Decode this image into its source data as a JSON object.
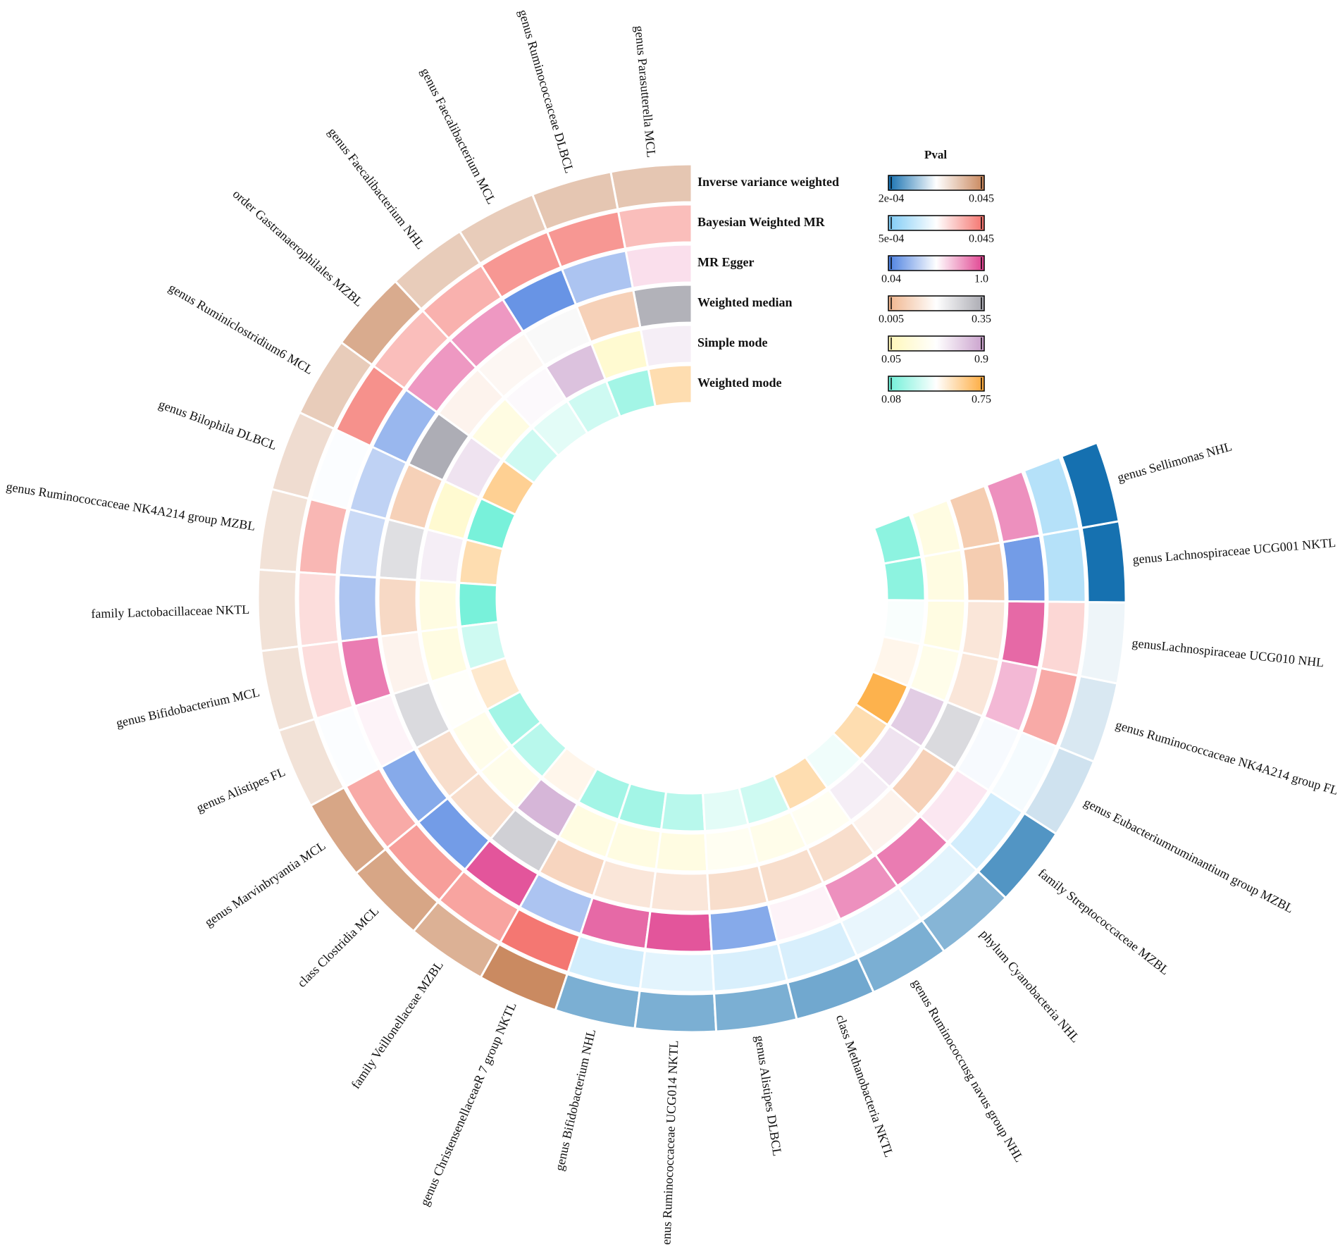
{
  "chart_data": {
    "type": "circular_heatmap",
    "legend_title": "Pval",
    "categories": [
      "genus Parasutterella MCL",
      "genus Ruminococcaceae DLBCL",
      "genus Faecalibacterium MCL",
      "genus Faecalibacterium NHL",
      "order Gastranaerophilales MZBL",
      "genus Ruminiclostridium6 MCL",
      "genus Bilophila DLBCL",
      "genus Ruminococcaceae NK4A214 group MZBL",
      "family Lactobacillaceae NKTL",
      "genus Bifidobacterium MCL",
      "genus Alistipes FL",
      "genus Marvinbryantia MCL",
      "class Clostridia MCL",
      "family Veillonellaceae MZBL",
      "genus ChristensenellaceaeR 7 group NKTL",
      "genus Bifidobacterium NHL",
      "genus Ruminococcaceae UCG014 NKTL",
      "genus Alistipes DLBCL",
      "class Methanobacteria NKTL",
      "genus Ruminococcusg navus group NHL",
      "phylum Cyanobacteria NHL",
      "family Streptococcaceae MZBL",
      "genus Eubacteriumruminantium group MZBL",
      "genus Ruminococcaceae NK4A214 group FL",
      "genusLachnospiraceae UCG010 NHL",
      "genus Lachnospiraceae UCG001 NKTL",
      "genus Sellimonas NHL"
    ],
    "series": [
      {
        "name": "Inverse variance weighted",
        "colors": [
          "#1570b0",
          "#ffffff",
          "#c8855a"
        ],
        "clim": [
          0.0002,
          0.045
        ],
        "cticks": [
          {
            "value": 0.0002,
            "label": "2e-04"
          },
          0.045
        ],
        "values": [
          0.033,
          0.033,
          0.032,
          0.032,
          0.038,
          0.032,
          0.029,
          0.028,
          0.028,
          0.028,
          0.028,
          0.039,
          0.039,
          0.037,
          0.044,
          0.01,
          0.01,
          0.01,
          0.009,
          0.01,
          0.011,
          0.006,
          0.018,
          0.019,
          0.021,
          0.0003,
          0.0002
        ]
      },
      {
        "name": "Bayesian Weighted MR",
        "colors": [
          "#7ecbf5",
          "#ffffff",
          "#f4716b"
        ],
        "clim": [
          0.0005,
          0.045
        ],
        "cticks": [
          {
            "value": 0.0005,
            "label": "5e-04"
          },
          0.045
        ],
        "values": [
          0.033,
          0.039,
          0.039,
          0.035,
          0.033,
          0.04,
          0.022,
          0.034,
          0.028,
          0.028,
          0.022,
          0.036,
          0.038,
          0.037,
          0.044,
          0.015,
          0.018,
          0.016,
          0.016,
          0.019,
          0.018,
          0.015,
          0.021,
          0.036,
          0.029,
          0.01,
          0.01
        ]
      },
      {
        "name": "MR Egger",
        "colors": [
          "#4a7fe0",
          "#ffffff",
          "#e0418f"
        ],
        "clim": [
          0.04,
          1
        ],
        "cticks": [
          0.04,
          {
            "value": 1,
            "label": "1.0"
          }
        ],
        "values": [
          0.6,
          0.3,
          0.12,
          0.78,
          0.78,
          0.25,
          0.35,
          0.38,
          0.3,
          0.85,
          0.55,
          0.2,
          0.15,
          0.95,
          0.3,
          0.9,
          0.95,
          0.2,
          0.55,
          0.8,
          0.85,
          0.58,
          0.5,
          0.7,
          0.9,
          0.15,
          0.8
        ]
      },
      {
        "name": "Weighted median",
        "colors": [
          "#f0b58d",
          "#ffffff",
          "#a8a8b0"
        ],
        "clim": [
          0.005,
          0.35
        ],
        "cticks": [
          0.005,
          0.35
        ],
        "values": [
          0.33,
          0.07,
          0.19,
          0.16,
          0.15,
          0.34,
          0.07,
          0.24,
          0.09,
          0.15,
          0.25,
          0.1,
          0.1,
          0.27,
          0.08,
          0.12,
          0.12,
          0.1,
          0.1,
          0.1,
          0.15,
          0.07,
          0.25,
          0.12,
          0.12,
          0.06,
          0.06
        ]
      },
      {
        "name": "Simple mode",
        "colors": [
          "#fff7b8",
          "#ffffff",
          "#c9a0cc"
        ],
        "clim": [
          0.05,
          0.9
        ],
        "cticks": [
          0.05,
          0.9
        ],
        "values": [
          0.55,
          0.2,
          0.75,
          0.5,
          0.3,
          0.6,
          0.2,
          0.55,
          0.3,
          0.3,
          0.45,
          0.35,
          0.35,
          0.8,
          0.3,
          0.3,
          0.3,
          0.4,
          0.35,
          0.4,
          0.55,
          0.6,
          0.7,
          0.35,
          0.3,
          0.3,
          0.3
        ]
      },
      {
        "name": "Weighted mode",
        "colors": [
          "#6ff0d8",
          "#ffffff",
          "#fdaa3c"
        ],
        "clim": [
          0.08,
          0.75
        ],
        "cticks": [
          0.08,
          0.75
        ],
        "values": [
          0.55,
          0.2,
          0.3,
          0.35,
          0.3,
          0.6,
          0.1,
          0.55,
          0.1,
          0.3,
          0.5,
          0.2,
          0.25,
          0.45,
          0.2,
          0.2,
          0.25,
          0.35,
          0.3,
          0.55,
          0.38,
          0.55,
          0.72,
          0.45,
          0.4,
          0.15,
          0.15
        ]
      }
    ]
  }
}
